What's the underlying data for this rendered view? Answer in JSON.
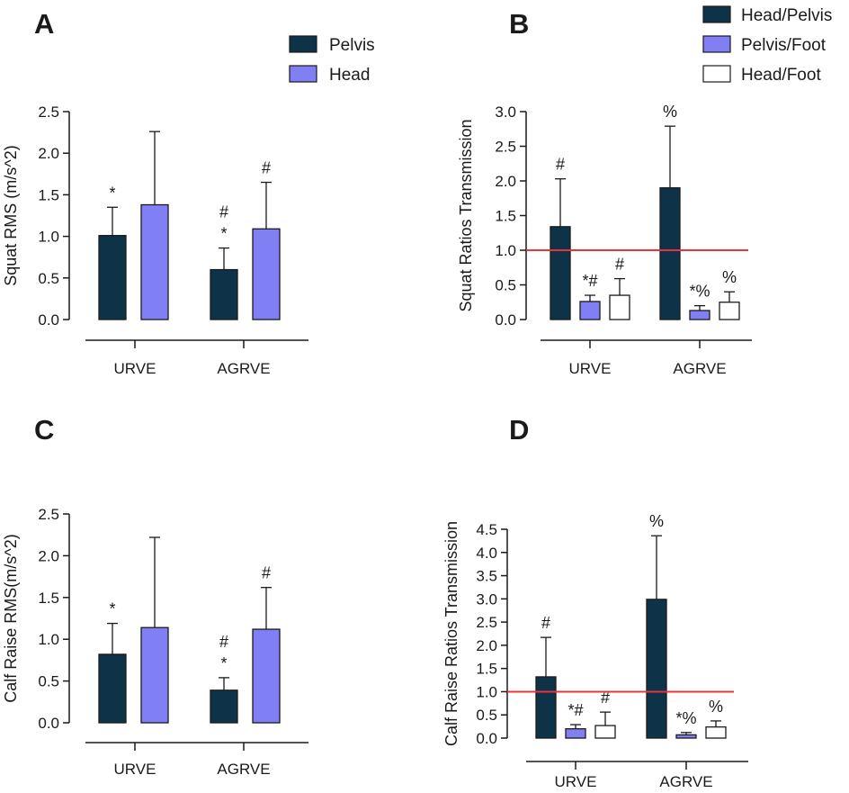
{
  "colors": {
    "pelvis": "#0e3247",
    "head": "#8080f4",
    "head_pelvis": "#0e3247",
    "pelvis_foot": "#8080f4",
    "head_foot": "#ffffff",
    "reference": "#e8343a",
    "axis": "#1a1a1a"
  },
  "legends": {
    "left": [
      {
        "label": "Pelvis",
        "color": "#0e3247"
      },
      {
        "label": "Head",
        "color": "#8080f4"
      }
    ],
    "right": [
      {
        "label": "Head/Pelvis",
        "color": "#0e3247"
      },
      {
        "label": "Pelvis/Foot",
        "color": "#8080f4"
      },
      {
        "label": "Head/Foot",
        "color": "#ffffff"
      }
    ]
  },
  "chart_data": [
    {
      "panel": "A",
      "type": "bar",
      "ylabel": "Squat RMS (m/s^2)",
      "categories": [
        "URVE",
        "AGRVE"
      ],
      "ylim": [
        0,
        2.5
      ],
      "yticks": [
        "0.0",
        "0.5",
        "1.0",
        "1.5",
        "2.0",
        "2.5"
      ],
      "series": [
        {
          "name": "Pelvis",
          "values": [
            1.01,
            0.6
          ],
          "errors": [
            0.34,
            0.26
          ],
          "annotations": [
            [
              "*"
            ],
            [
              "*",
              "#"
            ]
          ]
        },
        {
          "name": "Head",
          "values": [
            1.38,
            1.09
          ],
          "errors": [
            0.88,
            0.56
          ],
          "annotations": [
            [],
            [
              "#"
            ]
          ]
        }
      ]
    },
    {
      "panel": "B",
      "type": "bar",
      "ylabel": "Squat Ratios Transmission",
      "categories": [
        "URVE",
        "AGRVE"
      ],
      "ylim": [
        0,
        3.0
      ],
      "yticks": [
        "0.0",
        "0.5",
        "1.0",
        "1.5",
        "2.0",
        "2.5",
        "3.0"
      ],
      "reference_line": 1.0,
      "series": [
        {
          "name": "Head/Pelvis",
          "values": [
            1.34,
            1.9
          ],
          "errors": [
            0.69,
            0.89
          ],
          "annotations": [
            [
              "#"
            ],
            [
              "%"
            ]
          ]
        },
        {
          "name": "Pelvis/Foot",
          "values": [
            0.26,
            0.13
          ],
          "errors": [
            0.09,
            0.07
          ],
          "annotations": [
            [
              "*#"
            ],
            [
              "*%"
            ]
          ]
        },
        {
          "name": "Head/Foot",
          "values": [
            0.35,
            0.25
          ],
          "errors": [
            0.24,
            0.15
          ],
          "annotations": [
            [
              "#"
            ],
            [
              "%"
            ]
          ]
        }
      ]
    },
    {
      "panel": "C",
      "type": "bar",
      "ylabel": "Calf Raise RMS(m/s^2)",
      "categories": [
        "URVE",
        "AGRVE"
      ],
      "ylim": [
        0,
        2.5
      ],
      "yticks": [
        "0.0",
        "0.5",
        "1.0",
        "1.5",
        "2.0",
        "2.5"
      ],
      "series": [
        {
          "name": "Pelvis",
          "values": [
            0.82,
            0.39
          ],
          "errors": [
            0.37,
            0.15
          ],
          "annotations": [
            [
              "*"
            ],
            [
              "*",
              "#"
            ]
          ]
        },
        {
          "name": "Head",
          "values": [
            1.14,
            1.12
          ],
          "errors": [
            1.08,
            0.5
          ],
          "annotations": [
            [],
            [
              "#"
            ]
          ]
        }
      ]
    },
    {
      "panel": "D",
      "type": "bar",
      "ylabel": "Calf Raise Ratios Transmission",
      "categories": [
        "URVE",
        "AGRVE"
      ],
      "ylim": [
        0,
        4.5
      ],
      "yticks": [
        "0.0",
        "0.5",
        "1.0",
        "1.5",
        "2.0",
        "2.5",
        "3.0",
        "3.5",
        "4.0",
        "4.5"
      ],
      "reference_line": 1.0,
      "series": [
        {
          "name": "Head/Pelvis",
          "values": [
            1.32,
            2.99
          ],
          "errors": [
            0.85,
            1.37
          ],
          "annotations": [
            [
              "#"
            ],
            [
              "%"
            ]
          ]
        },
        {
          "name": "Pelvis/Foot",
          "values": [
            0.2,
            0.07
          ],
          "errors": [
            0.09,
            0.05
          ],
          "annotations": [
            [
              "*#"
            ],
            [
              "*%"
            ]
          ]
        },
        {
          "name": "Head/Foot",
          "values": [
            0.27,
            0.24
          ],
          "errors": [
            0.29,
            0.13
          ],
          "annotations": [
            [
              "#"
            ],
            [
              "%"
            ]
          ]
        }
      ]
    }
  ]
}
